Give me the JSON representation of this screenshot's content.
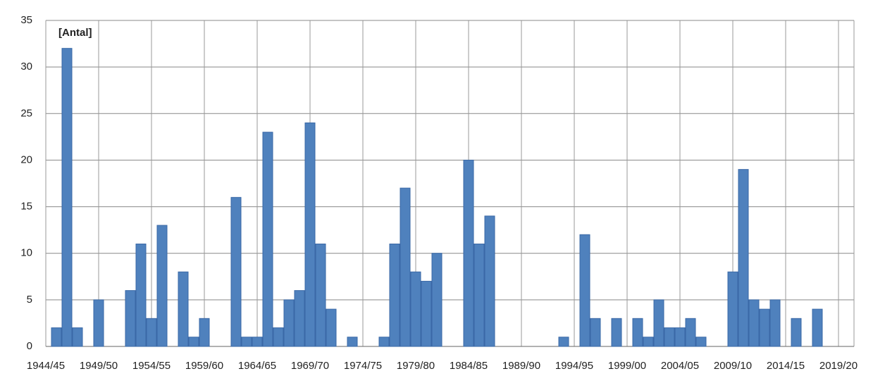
{
  "chart_data": {
    "type": "bar",
    "annotation": "[Antal]",
    "categories": [
      "1944/45",
      null,
      null,
      null,
      null,
      "1949/50",
      null,
      null,
      null,
      null,
      "1954/55",
      null,
      null,
      null,
      null,
      "1959/60",
      null,
      null,
      null,
      null,
      "1964/65",
      null,
      null,
      null,
      null,
      "1969/70",
      null,
      null,
      null,
      null,
      "1974/75",
      null,
      null,
      null,
      null,
      "1979/80",
      null,
      null,
      null,
      null,
      "1984/85",
      null,
      null,
      null,
      null,
      "1989/90",
      null,
      null,
      null,
      null,
      "1994/95",
      null,
      null,
      null,
      null,
      "1999/00",
      null,
      null,
      null,
      null,
      "2004/05",
      null,
      null,
      null,
      null,
      "2009/10",
      null,
      null,
      null,
      null,
      "2014/15",
      null,
      null,
      null,
      null,
      "2019/20",
      null
    ],
    "values": [
      0,
      2,
      32,
      2,
      0,
      5,
      0,
      0,
      6,
      11,
      3,
      13,
      0,
      8,
      1,
      3,
      0,
      0,
      16,
      1,
      1,
      23,
      2,
      5,
      6,
      24,
      11,
      4,
      0,
      1,
      0,
      0,
      1,
      11,
      17,
      8,
      7,
      10,
      0,
      0,
      20,
      11,
      14,
      0,
      0,
      0,
      0,
      0,
      0,
      1,
      0,
      12,
      3,
      0,
      3,
      0,
      3,
      1,
      5,
      2,
      2,
      3,
      1,
      0,
      0,
      8,
      19,
      5,
      4,
      5,
      0,
      3,
      0,
      4,
      0,
      0,
      0
    ],
    "color": "#4f81bd",
    "ylim": [
      0,
      35
    ],
    "yticks": [
      0,
      5,
      10,
      15,
      20,
      25,
      30,
      35
    ],
    "grid": true
  }
}
